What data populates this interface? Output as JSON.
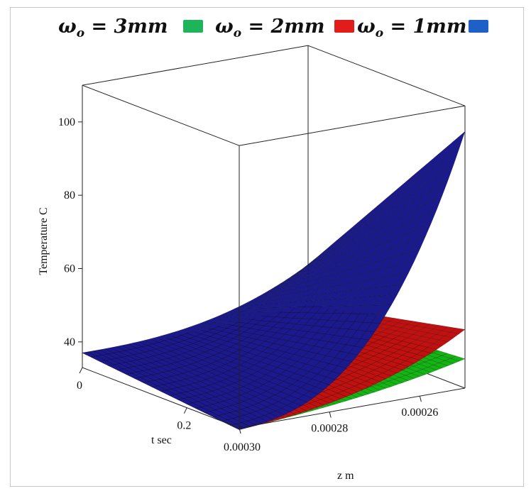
{
  "chart_data": {
    "type": "surface3d",
    "zlabel": "Temperature C",
    "xlabel": "z  m",
    "ylabel": "t sec",
    "zlim": [
      33,
      110
    ],
    "z_ticks": [
      "40",
      "60",
      "80",
      "100"
    ],
    "z_axis_range": [
      0.0003,
      0.00025
    ],
    "z_tick_labels": [
      "0.00030",
      "0.00028",
      "0.00026"
    ],
    "t_axis_range": [
      0,
      0.3
    ],
    "t_tick_labels": [
      "0",
      "0.2"
    ],
    "legend": {
      "placement": "top",
      "entries": [
        {
          "symbol": "ω",
          "sub": "o",
          "text": " = 3mm",
          "color": "#1fb35c"
        },
        {
          "symbol": "ω",
          "sub": "o",
          "text": " = 2mm",
          "color": "#e21b1b"
        },
        {
          "symbol": "ω",
          "sub": "o",
          "text": " = 1mm",
          "color": "#1f5fc8"
        }
      ]
    },
    "series": [
      {
        "name": "ωo = 1mm",
        "color": "#1a1a8c",
        "T_base": 37,
        "T_max": 103
      },
      {
        "name": "ωo = 2mm",
        "color": "#c01010",
        "T_base": 37,
        "T_max": 49
      },
      {
        "name": "ωo = 3mm",
        "color": "#14b414",
        "T_base": 37,
        "T_max": 41
      }
    ]
  }
}
